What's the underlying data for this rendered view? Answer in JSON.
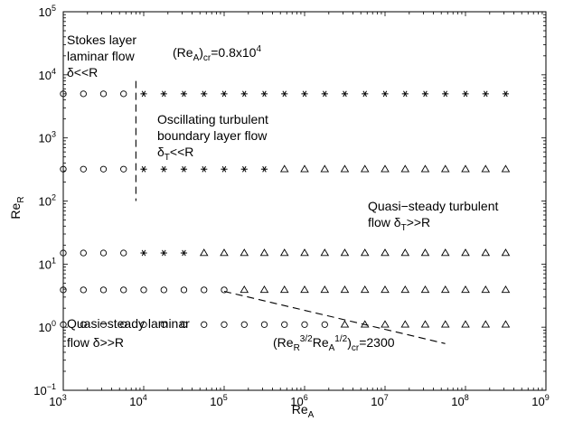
{
  "chart_data": {
    "type": "scatter",
    "xlabel": "Re_A",
    "ylabel": "Re_R",
    "xscale": "log",
    "yscale": "log",
    "xlim": [
      1000,
      1000000000
    ],
    "ylim": [
      0.1,
      100000
    ],
    "grid": false,
    "x_tick_labels": [
      {
        "base": "10",
        "exp": "3"
      },
      {
        "base": "10",
        "exp": "4"
      },
      {
        "base": "10",
        "exp": "5"
      },
      {
        "base": "10",
        "exp": "6"
      },
      {
        "base": "10",
        "exp": "7"
      },
      {
        "base": "10",
        "exp": "8"
      },
      {
        "base": "10",
        "exp": "9"
      }
    ],
    "y_tick_labels": [
      {
        "base": "10",
        "exp": "−1"
      },
      {
        "base": "10",
        "exp": "0"
      },
      {
        "base": "10",
        "exp": "1"
      },
      {
        "base": "10",
        "exp": "2"
      },
      {
        "base": "10",
        "exp": "3"
      },
      {
        "base": "10",
        "exp": "4"
      },
      {
        "base": "10",
        "exp": "5"
      }
    ],
    "series": [
      {
        "marker": "circle",
        "points": [
          [
            1000,
            5000
          ],
          [
            1780,
            5000
          ],
          [
            3160,
            5000
          ],
          [
            5620,
            5000
          ],
          [
            1000,
            320
          ],
          [
            1780,
            320
          ],
          [
            3160,
            320
          ],
          [
            5620,
            320
          ],
          [
            1000,
            15
          ],
          [
            1780,
            15
          ],
          [
            3160,
            15
          ],
          [
            5620,
            15
          ],
          [
            1000,
            3.9
          ],
          [
            1780,
            3.9
          ],
          [
            3160,
            3.9
          ],
          [
            5620,
            3.9
          ],
          [
            10000,
            3.9
          ],
          [
            17800,
            3.9
          ],
          [
            31600,
            3.9
          ],
          [
            56200,
            3.9
          ],
          [
            100000,
            3.9
          ],
          [
            1000,
            1.1
          ],
          [
            1780,
            1.1
          ],
          [
            3160,
            1.1
          ],
          [
            5620,
            1.1
          ],
          [
            10000,
            1.1
          ],
          [
            17800,
            1.1
          ],
          [
            31600,
            1.1
          ],
          [
            56200,
            1.1
          ],
          [
            100000,
            1.1
          ],
          [
            178000,
            1.1
          ],
          [
            316000,
            1.1
          ],
          [
            562000,
            1.1
          ],
          [
            1000000,
            1.1
          ],
          [
            1780000,
            1.1
          ]
        ]
      },
      {
        "marker": "star",
        "points": [
          [
            10000,
            5000
          ],
          [
            17800,
            5000
          ],
          [
            31600,
            5000
          ],
          [
            56200,
            5000
          ],
          [
            100000,
            5000
          ],
          [
            178000,
            5000
          ],
          [
            316000,
            5000
          ],
          [
            562000,
            5000
          ],
          [
            1000000,
            5000
          ],
          [
            1780000,
            5000
          ],
          [
            3160000,
            5000
          ],
          [
            5620000,
            5000
          ],
          [
            10000000,
            5000
          ],
          [
            17800000,
            5000
          ],
          [
            31600000,
            5000
          ],
          [
            56200000,
            5000
          ],
          [
            100000000,
            5000
          ],
          [
            178000000,
            5000
          ],
          [
            316000000,
            5000
          ],
          [
            10000,
            320
          ],
          [
            17800,
            320
          ],
          [
            31600,
            320
          ],
          [
            56200,
            320
          ],
          [
            100000,
            320
          ],
          [
            178000,
            320
          ],
          [
            316000,
            320
          ],
          [
            10000,
            15
          ],
          [
            17800,
            15
          ],
          [
            31600,
            15
          ]
        ]
      },
      {
        "marker": "triangle",
        "points": [
          [
            562000,
            320
          ],
          [
            1000000,
            320
          ],
          [
            1780000,
            320
          ],
          [
            3160000,
            320
          ],
          [
            5620000,
            320
          ],
          [
            10000000,
            320
          ],
          [
            17800000,
            320
          ],
          [
            31600000,
            320
          ],
          [
            56200000,
            320
          ],
          [
            100000000,
            320
          ],
          [
            178000000,
            320
          ],
          [
            316000000,
            320
          ],
          [
            56200,
            15
          ],
          [
            100000,
            15
          ],
          [
            178000,
            15
          ],
          [
            316000,
            15
          ],
          [
            562000,
            15
          ],
          [
            1000000,
            15
          ],
          [
            1780000,
            15
          ],
          [
            3160000,
            15
          ],
          [
            5620000,
            15
          ],
          [
            10000000,
            15
          ],
          [
            17800000,
            15
          ],
          [
            31600000,
            15
          ],
          [
            56200000,
            15
          ],
          [
            100000000,
            15
          ],
          [
            178000000,
            15
          ],
          [
            316000000,
            15
          ],
          [
            178000,
            3.9
          ],
          [
            316000,
            3.9
          ],
          [
            562000,
            3.9
          ],
          [
            1000000,
            3.9
          ],
          [
            1780000,
            3.9
          ],
          [
            3160000,
            3.9
          ],
          [
            5620000,
            3.9
          ],
          [
            10000000,
            3.9
          ],
          [
            17800000,
            3.9
          ],
          [
            31600000,
            3.9
          ],
          [
            56200000,
            3.9
          ],
          [
            100000000,
            3.9
          ],
          [
            178000000,
            3.9
          ],
          [
            316000000,
            3.9
          ],
          [
            3160000,
            1.1
          ],
          [
            5620000,
            1.1
          ],
          [
            10000000,
            1.1
          ],
          [
            17800000,
            1.1
          ],
          [
            31600000,
            1.1
          ],
          [
            56200000,
            1.1
          ],
          [
            100000000,
            1.1
          ],
          [
            178000000,
            1.1
          ],
          [
            316000000,
            1.1
          ]
        ]
      }
    ],
    "lines": [
      {
        "style": "dashed",
        "from": [
          8000,
          8000
        ],
        "to": [
          8000,
          100
        ]
      },
      {
        "style": "dashed",
        "from": [
          100000,
          3.7
        ],
        "to": [
          56000000,
          0.55
        ]
      }
    ],
    "annotations": {
      "stokes_line1": "Stokes layer",
      "stokes_line2": "laminar flow",
      "stokes_line3": "δ<<R",
      "reacr_a": "(Re",
      "reacr_b": "A",
      "reacr_c": ")",
      "reacr_d": "cr",
      "reacr_e": "=0.8x10",
      "reacr_f": "4",
      "osc_line1": "Oscillating turbulent",
      "osc_line2": "boundary layer flow",
      "osc_line3_a": "δ",
      "osc_line3_b": "T",
      "osc_line3_c": "<<R",
      "qst_line1": "Quasi−steady turbulent",
      "qst_line2_a": "flow δ",
      "qst_line2_b": "T",
      "qst_line2_c": ">>R",
      "qsl_line1": "Quasi−steady laminar",
      "qsl_line2": "flow δ>>R",
      "crit_a": "(Re",
      "crit_b": "R",
      "crit_c": "3/2",
      "crit_d": "Re",
      "crit_e": "A",
      "crit_f": "1/2",
      "crit_g": ")",
      "crit_h": "cr",
      "crit_i": "=2300"
    },
    "axis_text": {
      "x_main": "Re",
      "x_sub": "A",
      "y_main": "Re",
      "y_sub": "R"
    }
  }
}
